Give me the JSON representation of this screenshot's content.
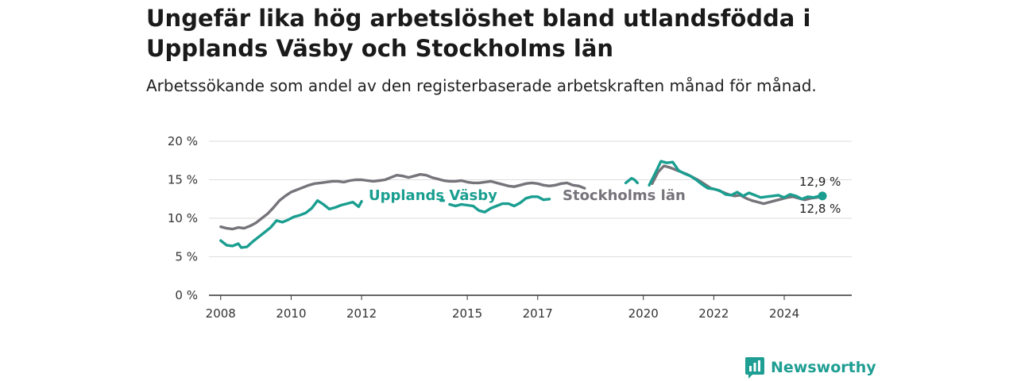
{
  "header": {
    "title": "Ungefär lika hög arbetslöshet bland utlandsfödda i Upplands Väsby och Stockholms län",
    "subtitle": "Arbetssökande som andel av den registerbaserade arbetskraften månad för månad."
  },
  "brand": {
    "name": "Newsworthy",
    "icon": "newsworthy-logo-icon"
  },
  "colors": {
    "vasby": "#1a9e90",
    "stockholm": "#76737a",
    "grid": "#dddddd",
    "axis": "#333333"
  },
  "chart_data": {
    "type": "line",
    "title": "Ungefär lika hög arbetslöshet bland utlandsfödda i Upplands Väsby och Stockholms län",
    "subtitle": "Arbetssökande som andel av den registerbaserade arbetskraften månad för månad.",
    "xlabel": "",
    "ylabel": "",
    "xlim": [
      "2007-09",
      "2025-12"
    ],
    "ylim": [
      0,
      20
    ],
    "y_ticks": [
      0,
      5,
      10,
      15,
      20
    ],
    "y_tick_labels": [
      "0 %",
      "5 %",
      "10 %",
      "15 %",
      "20 %"
    ],
    "x_ticks": [
      "2008",
      "2010",
      "2012",
      "2015",
      "2017",
      "2020",
      "2022",
      "2024"
    ],
    "grid": true,
    "legend": "inline labels",
    "series": [
      {
        "name": "Upplands Väsby",
        "color": "#1a9e90",
        "label": "Upplands Väsby",
        "end_label": "12,9 %",
        "points": [
          [
            "2008-01",
            7.1
          ],
          [
            "2008-03",
            6.5
          ],
          [
            "2008-05",
            6.4
          ],
          [
            "2008-07",
            6.7
          ],
          [
            "2008-08",
            6.2
          ],
          [
            "2008-10",
            6.3
          ],
          [
            "2008-12",
            7.0
          ],
          [
            "2009-02",
            7.6
          ],
          [
            "2009-04",
            8.2
          ],
          [
            "2009-06",
            8.8
          ],
          [
            "2009-08",
            9.7
          ],
          [
            "2009-10",
            9.5
          ],
          [
            "2009-12",
            9.8
          ],
          [
            "2010-02",
            10.2
          ],
          [
            "2010-04",
            10.4
          ],
          [
            "2010-06",
            10.7
          ],
          [
            "2010-08",
            11.3
          ],
          [
            "2010-10",
            12.3
          ],
          [
            "2010-12",
            11.8
          ],
          [
            "2011-02",
            11.2
          ],
          [
            "2011-04",
            11.4
          ],
          [
            "2011-06",
            11.7
          ],
          [
            "2011-08",
            11.9
          ],
          [
            "2011-10",
            12.1
          ],
          [
            "2011-12",
            11.5
          ],
          [
            "2012-01",
            12.2
          ],
          null,
          [
            "2014-04",
            12.3
          ],
          [
            "2014-05",
            12.3
          ],
          null,
          [
            "2014-07",
            11.8
          ],
          [
            "2014-09",
            11.6
          ],
          [
            "2014-11",
            11.8
          ],
          [
            "2015-01",
            11.7
          ],
          [
            "2015-03",
            11.6
          ],
          [
            "2015-05",
            11.0
          ],
          [
            "2015-07",
            10.8
          ],
          [
            "2015-09",
            11.3
          ],
          [
            "2015-11",
            11.6
          ],
          [
            "2016-01",
            11.9
          ],
          [
            "2016-03",
            11.9
          ],
          [
            "2016-05",
            11.6
          ],
          [
            "2016-07",
            12.0
          ],
          [
            "2016-09",
            12.6
          ],
          [
            "2016-11",
            12.8
          ],
          [
            "2017-01",
            12.8
          ],
          [
            "2017-03",
            12.4
          ],
          [
            "2017-05",
            12.5
          ],
          null,
          [
            "2019-07",
            14.6
          ],
          [
            "2019-09",
            15.2
          ],
          [
            "2019-10",
            15.0
          ],
          [
            "2019-11",
            14.6
          ],
          null,
          [
            "2020-03",
            14.3
          ],
          [
            "2020-05",
            15.8
          ],
          [
            "2020-07",
            17.4
          ],
          [
            "2020-09",
            17.2
          ],
          [
            "2020-11",
            17.3
          ],
          [
            "2021-01",
            16.2
          ],
          [
            "2021-03",
            15.8
          ],
          [
            "2021-05",
            15.5
          ],
          [
            "2021-07",
            15.0
          ],
          [
            "2021-09",
            14.4
          ],
          [
            "2021-11",
            13.9
          ],
          [
            "2022-01",
            13.8
          ],
          [
            "2022-03",
            13.6
          ],
          [
            "2022-05",
            13.1
          ],
          [
            "2022-07",
            13.0
          ],
          [
            "2022-09",
            13.4
          ],
          [
            "2022-11",
            12.9
          ],
          [
            "2023-01",
            13.3
          ],
          [
            "2023-03",
            13.0
          ],
          [
            "2023-05",
            12.7
          ],
          [
            "2023-07",
            12.8
          ],
          [
            "2023-09",
            12.9
          ],
          [
            "2023-11",
            13.0
          ],
          [
            "2024-01",
            12.7
          ],
          [
            "2024-03",
            13.1
          ],
          [
            "2024-05",
            12.9
          ],
          [
            "2024-07",
            12.5
          ],
          [
            "2024-09",
            12.8
          ],
          [
            "2024-11",
            12.7
          ],
          [
            "2025-01",
            12.9
          ],
          [
            "2025-02",
            12.9
          ]
        ]
      },
      {
        "name": "Stockholms län",
        "color": "#76737a",
        "label": "Stockholms län",
        "end_label": "12,8 %",
        "points": [
          [
            "2008-01",
            8.9
          ],
          [
            "2008-03",
            8.7
          ],
          [
            "2008-05",
            8.6
          ],
          [
            "2008-07",
            8.8
          ],
          [
            "2008-09",
            8.7
          ],
          [
            "2008-11",
            9.0
          ],
          [
            "2009-01",
            9.4
          ],
          [
            "2009-03",
            10.0
          ],
          [
            "2009-05",
            10.6
          ],
          [
            "2009-07",
            11.4
          ],
          [
            "2009-09",
            12.3
          ],
          [
            "2009-11",
            12.9
          ],
          [
            "2010-01",
            13.4
          ],
          [
            "2010-03",
            13.7
          ],
          [
            "2010-05",
            14.0
          ],
          [
            "2010-07",
            14.3
          ],
          [
            "2010-09",
            14.5
          ],
          [
            "2010-11",
            14.6
          ],
          [
            "2011-01",
            14.7
          ],
          [
            "2011-03",
            14.8
          ],
          [
            "2011-05",
            14.8
          ],
          [
            "2011-07",
            14.7
          ],
          [
            "2011-09",
            14.9
          ],
          [
            "2011-11",
            15.0
          ],
          [
            "2012-01",
            15.0
          ],
          [
            "2012-03",
            14.9
          ],
          [
            "2012-05",
            14.8
          ],
          [
            "2012-07",
            14.9
          ],
          [
            "2012-09",
            15.0
          ],
          [
            "2012-11",
            15.3
          ],
          [
            "2013-01",
            15.6
          ],
          [
            "2013-03",
            15.5
          ],
          [
            "2013-05",
            15.3
          ],
          [
            "2013-07",
            15.5
          ],
          [
            "2013-09",
            15.7
          ],
          [
            "2013-11",
            15.6
          ],
          [
            "2014-01",
            15.3
          ],
          [
            "2014-03",
            15.1
          ],
          [
            "2014-05",
            14.9
          ],
          [
            "2014-07",
            14.8
          ],
          [
            "2014-09",
            14.8
          ],
          [
            "2014-11",
            14.9
          ],
          [
            "2015-01",
            14.7
          ],
          [
            "2015-03",
            14.6
          ],
          [
            "2015-05",
            14.6
          ],
          [
            "2015-07",
            14.7
          ],
          [
            "2015-09",
            14.8
          ],
          [
            "2015-11",
            14.6
          ],
          [
            "2016-01",
            14.4
          ],
          [
            "2016-03",
            14.2
          ],
          [
            "2016-05",
            14.1
          ],
          [
            "2016-07",
            14.3
          ],
          [
            "2016-09",
            14.5
          ],
          [
            "2016-11",
            14.6
          ],
          [
            "2017-01",
            14.5
          ],
          [
            "2017-03",
            14.3
          ],
          [
            "2017-05",
            14.2
          ],
          [
            "2017-07",
            14.3
          ],
          [
            "2017-09",
            14.5
          ],
          [
            "2017-11",
            14.6
          ],
          [
            "2018-01",
            14.3
          ],
          [
            "2018-03",
            14.2
          ],
          [
            "2018-05",
            13.9
          ],
          null,
          [
            "2020-04",
            14.5
          ],
          [
            "2020-06",
            16.0
          ],
          [
            "2020-08",
            16.8
          ],
          [
            "2020-10",
            16.6
          ],
          [
            "2020-12",
            16.3
          ],
          [
            "2021-02",
            16.0
          ],
          [
            "2021-04",
            15.7
          ],
          [
            "2021-06",
            15.3
          ],
          [
            "2021-08",
            14.9
          ],
          [
            "2021-10",
            14.4
          ],
          [
            "2021-12",
            13.9
          ],
          [
            "2022-02",
            13.7
          ],
          [
            "2022-04",
            13.4
          ],
          [
            "2022-06",
            13.1
          ],
          [
            "2022-08",
            12.9
          ],
          [
            "2022-10",
            13.0
          ],
          [
            "2022-12",
            12.6
          ],
          [
            "2023-02",
            12.3
          ],
          [
            "2023-04",
            12.1
          ],
          [
            "2023-06",
            11.9
          ],
          [
            "2023-08",
            12.1
          ],
          [
            "2023-10",
            12.3
          ],
          [
            "2023-12",
            12.5
          ],
          [
            "2024-02",
            12.7
          ],
          [
            "2024-04",
            12.8
          ],
          [
            "2024-06",
            12.6
          ],
          [
            "2024-08",
            12.4
          ],
          [
            "2024-10",
            12.6
          ],
          [
            "2024-12",
            12.7
          ],
          [
            "2025-02",
            12.8
          ]
        ]
      }
    ]
  }
}
